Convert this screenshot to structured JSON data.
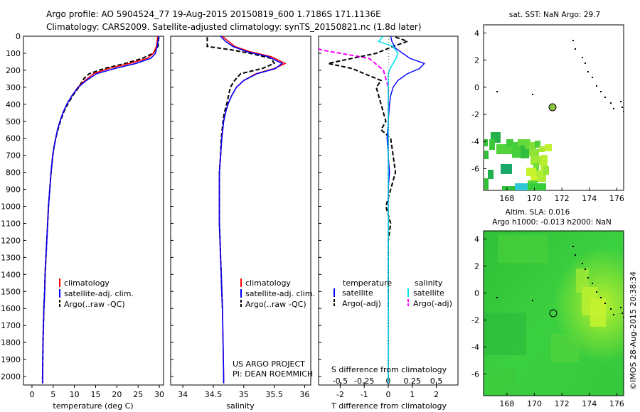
{
  "header": {
    "line1": "Argo profile: AO 5904524_77 19-Aug-2015 20150819_600 1.7186S 171.1136E",
    "line2": "Climatology: CARS2009. Satellite-adjusted climatology: synTS_20150821.nc (1.8d later)"
  },
  "colors": {
    "climatology": "#ff0000",
    "satellite": "#0000ff",
    "argo": "#000000",
    "sat_diff": "#00e5ee",
    "argo_diff": "#ff00ff"
  },
  "depth_ticks": [
    "0",
    "100",
    "200",
    "300",
    "400",
    "500",
    "600",
    "700",
    "800",
    "900",
    "1000",
    "1100",
    "1200",
    "1300",
    "1400",
    "1500",
    "1600",
    "1700",
    "1800",
    "1900",
    "2000"
  ],
  "panels": {
    "temperature": {
      "xlabel": "temperature (deg C)",
      "xticks": [
        "0",
        "5",
        "10",
        "15",
        "20",
        "25",
        "30"
      ],
      "legend": [
        "climatology",
        "satellite-adj. clim.",
        "Argo(..raw -QC)"
      ]
    },
    "salinity": {
      "xlabel": "salinity",
      "xticks": [
        "34",
        "34.5",
        "35",
        "35.5",
        "36"
      ],
      "legend": [
        "climatology",
        "satellite-adj. clim.",
        "Argo(..raw -QC)"
      ],
      "credit": [
        "US ARGO PROJECT",
        "PI: DEAN ROEMMICH"
      ]
    },
    "difference": {
      "xlabel_bottom": "T difference from climatology",
      "xlabel_top": "S difference from climatology",
      "xticks_bottom": [
        "-2",
        "-1",
        "0",
        "1",
        "2"
      ],
      "xticks_top": [
        "-0.5",
        "-0.25",
        "0",
        "0.25",
        "0.5"
      ],
      "legend_temperature_title": "temperature",
      "legend_salinity_title": "salinity",
      "legend_items": [
        "satellite",
        "Argo(-adj)"
      ]
    },
    "sst_map": {
      "title": "sat. SST: NaN Argo: 29.7",
      "xticks": [
        "168",
        "170",
        "172",
        "174",
        "176"
      ],
      "yticks": [
        "4",
        "2",
        "0",
        "-2",
        "-4",
        "-6"
      ]
    },
    "sla_map": {
      "title1": "Altim. SLA: 0.016",
      "title2": "Argo h1000: -0.013 h2000: NaN",
      "xticks": [
        "168",
        "170",
        "172",
        "174",
        "176"
      ],
      "yticks": [
        "4",
        "2",
        "0",
        "-2",
        "-4",
        "-6"
      ]
    }
  },
  "stamp": "©IMOS 28-Aug-2015 20:38:34",
  "chart_data": [
    {
      "type": "line",
      "title": "",
      "xlabel": "temperature (deg C)",
      "ylabel": "",
      "xlim": [
        -2,
        31
      ],
      "ylim": [
        2050,
        0
      ],
      "series": [
        {
          "name": "climatology",
          "x": [
            29.6,
            29.5,
            29.3,
            28.6,
            27.2,
            23,
            18,
            14.5,
            12.5,
            10.8,
            9.4,
            8.2,
            7.3,
            6.6,
            6,
            5.6,
            5.2,
            4.9,
            4.5,
            4.2,
            3.9,
            3.7,
            3.5,
            3.3,
            3.1,
            3,
            2.8,
            2.6,
            2.5,
            2.5
          ],
          "y": [
            0,
            30,
            60,
            100,
            130,
            160,
            190,
            220,
            260,
            300,
            350,
            400,
            450,
            500,
            550,
            600,
            650,
            700,
            800,
            900,
            1000,
            1100,
            1200,
            1300,
            1400,
            1500,
            1600,
            1800,
            2000,
            2040
          ]
        },
        {
          "name": "satellite-adj. clim.",
          "x": [
            29.8,
            29.7,
            29.5,
            29.1,
            28,
            24.5,
            19.5,
            15.2,
            12.8,
            10.9,
            9.4,
            8.2,
            7.3,
            6.6,
            6,
            5.6,
            5.2,
            4.9,
            4.5,
            4.2,
            3.9,
            3.7,
            3.5,
            3.3,
            3.1,
            3,
            2.8,
            2.6,
            2.5,
            2.5
          ],
          "y": [
            0,
            30,
            60,
            100,
            130,
            160,
            190,
            220,
            260,
            300,
            350,
            400,
            450,
            500,
            550,
            600,
            650,
            700,
            800,
            900,
            1000,
            1100,
            1200,
            1300,
            1400,
            1500,
            1600,
            1800,
            2000,
            2040
          ]
        },
        {
          "name": "Argo(..raw -QC)",
          "x": [
            29.9,
            29.8,
            29.7,
            28.5,
            26,
            22,
            17,
            13.5,
            12.2,
            11,
            9.6,
            8.4,
            7.4,
            6.7,
            6.1,
            5.6,
            5.2,
            4.9,
            4.5,
            4.2,
            3.9,
            3.7,
            3.5,
            3.3,
            3.1,
            3,
            2.8,
            2.6,
            2.5,
            2.5
          ],
          "y": [
            5,
            30,
            60,
            100,
            130,
            160,
            190,
            220,
            250,
            300,
            350,
            400,
            450,
            500,
            550,
            600,
            650,
            700,
            800,
            900,
            1000,
            1100,
            1200,
            1300,
            1400,
            1500,
            1600,
            1800,
            2000,
            2040
          ]
        }
      ]
    },
    {
      "type": "line",
      "title": "",
      "xlabel": "salinity",
      "ylabel": "",
      "xlim": [
        33.8,
        36.1
      ],
      "ylim": [
        2050,
        0
      ],
      "series": [
        {
          "name": "climatology",
          "x": [
            34.65,
            34.75,
            34.85,
            35.1,
            35.45,
            35.68,
            35.5,
            35.2,
            35,
            34.88,
            34.8,
            34.74,
            34.7,
            34.67,
            34.64,
            34.62,
            34.6,
            34.6,
            34.6,
            34.6,
            34.61,
            34.62,
            34.63,
            34.64,
            34.65,
            34.66,
            34.67,
            34.67
          ],
          "y": [
            0,
            30,
            60,
            90,
            120,
            160,
            190,
            220,
            260,
            300,
            350,
            400,
            450,
            500,
            600,
            700,
            800,
            900,
            1000,
            1100,
            1200,
            1300,
            1400,
            1500,
            1600,
            1800,
            2000,
            2040
          ]
        },
        {
          "name": "satellite-adj. clim.",
          "x": [
            34.62,
            34.7,
            34.82,
            35.05,
            35.4,
            35.63,
            35.52,
            35.22,
            35,
            34.88,
            34.8,
            34.74,
            34.7,
            34.67,
            34.64,
            34.62,
            34.6,
            34.6,
            34.6,
            34.6,
            34.61,
            34.62,
            34.63,
            34.64,
            34.65,
            34.66,
            34.67,
            34.67
          ],
          "y": [
            0,
            30,
            60,
            90,
            120,
            160,
            190,
            220,
            260,
            300,
            350,
            400,
            450,
            500,
            600,
            700,
            800,
            900,
            1000,
            1100,
            1200,
            1300,
            1400,
            1500,
            1600,
            1800,
            2000,
            2040
          ]
        },
        {
          "name": "Argo(..raw -QC)",
          "x": [
            34.4,
            34.4,
            34.8,
            35.1,
            35.45,
            35.5,
            35.3,
            34.95,
            34.85,
            34.78,
            34.72,
            34.68,
            34.66,
            34.63,
            34.62,
            34.6,
            34.6,
            34.6,
            34.61,
            34.62,
            34.63,
            34.64,
            34.65
          ],
          "y": [
            5,
            60,
            80,
            100,
            130,
            160,
            190,
            220,
            260,
            300,
            400,
            450,
            500,
            600,
            700,
            800,
            1000,
            1100,
            1200,
            1300,
            1400,
            1500,
            1600
          ]
        }
      ]
    },
    {
      "type": "line",
      "title": "",
      "xlabel": "T difference from climatology",
      "ylabel": "",
      "xlim": [
        -2.9,
        2.9
      ],
      "ylim": [
        2050,
        0
      ],
      "series": [
        {
          "name": "temperature satellite",
          "x": [
            0.1,
            0.15,
            0.3,
            0.9,
            1.5,
            1.3,
            0.8,
            0.4,
            0.2,
            0.1,
            0.05,
            0,
            -0.05,
            0,
            0.05,
            0,
            0,
            0,
            0,
            0,
            0,
            0,
            0
          ],
          "y": [
            0,
            30,
            70,
            130,
            160,
            190,
            220,
            260,
            300,
            350,
            400,
            500,
            600,
            700,
            800,
            900,
            1000,
            1200,
            1400,
            1600,
            1800,
            2000,
            2040
          ]
        },
        {
          "name": "temperature Argo(-adj)",
          "x": [
            0.3,
            0.8,
            0.2,
            -0.5,
            -2.5,
            -1.5,
            -1,
            -0.3,
            -0.5,
            -0.4,
            -0.3,
            -0.2,
            -0.1,
            -0.3,
            0.1,
            0.2,
            0.3,
            0.1,
            -0.1,
            0.1,
            0,
            0,
            0,
            0,
            0
          ],
          "y": [
            5,
            30,
            60,
            100,
            160,
            190,
            220,
            260,
            300,
            350,
            400,
            450,
            500,
            550,
            600,
            700,
            800,
            900,
            1000,
            1100,
            1200,
            1300,
            1400,
            1500,
            1600
          ]
        },
        {
          "name": "salinity satellite",
          "x": [
            -0.05,
            -0.1,
            0.05,
            0.1,
            0.08,
            0.05,
            0.02,
            0,
            0,
            0,
            0,
            0,
            0,
            0,
            0
          ],
          "y": [
            0,
            30,
            60,
            100,
            130,
            160,
            190,
            220,
            300,
            500,
            800,
            1200,
            1600,
            2000,
            2040
          ]
        },
        {
          "name": "salinity Argo(-adj)",
          "x": [
            -0.85,
            -0.7,
            -0.2,
            -0.05,
            0,
            0,
            0,
            0
          ],
          "y": [
            40,
            80,
            130,
            200,
            300,
            500,
            700,
            1000
          ]
        }
      ]
    },
    {
      "type": "heatmap",
      "title": "sat. SST: NaN Argo: 29.7",
      "xlim": [
        166.3,
        176.5
      ],
      "ylim": [
        -7.6,
        4.6
      ],
      "argo_position": {
        "lon": 171.1136,
        "lat": -1.7186
      }
    },
    {
      "type": "heatmap",
      "title": "Altim. SLA: 0.016",
      "xlim": [
        166.3,
        176.5
      ],
      "ylim": [
        -7.6,
        4.6
      ],
      "argo_position": {
        "lon": 171.1136,
        "lat": -1.7186
      }
    }
  ]
}
